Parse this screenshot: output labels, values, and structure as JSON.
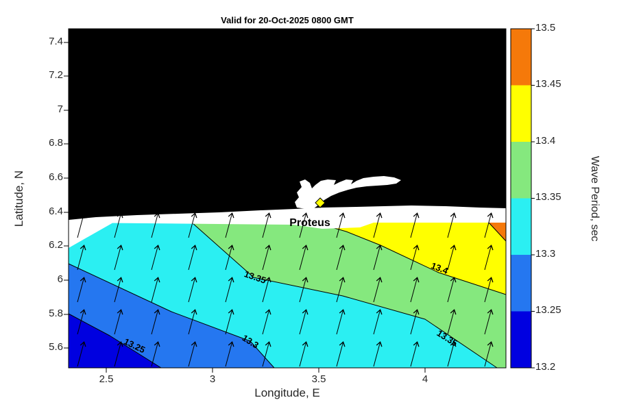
{
  "title": "Valid for 20-Oct-2025 0800 GMT",
  "axes": {
    "x": {
      "label": "Longitude, E",
      "ticks": [
        "2.5",
        "3",
        "3.5",
        "4"
      ]
    },
    "y": {
      "label": "Latitude, N",
      "ticks": [
        "7.4",
        "7.2",
        "7",
        "6.8",
        "6.6",
        "6.4",
        "6.2",
        "6",
        "5.8",
        "5.6"
      ]
    }
  },
  "colorbar": {
    "label": "Wave Period, sec",
    "ticks": [
      "13.5",
      "13.45",
      "13.4",
      "13.35",
      "13.3",
      "13.25",
      "13.2"
    ]
  },
  "map": {
    "station_label": "Proteus",
    "land_color": "#000000",
    "coast_buffer_color": "#FFFFFF",
    "station_marker_color": "#FFFF00"
  },
  "contour_labels": [
    {
      "value": "13.25"
    },
    {
      "value": "13.3"
    },
    {
      "value": "13.35"
    },
    {
      "value": "13.4"
    },
    {
      "value": "13.35"
    }
  ],
  "chart_data": {
    "type": "filled_contour_map_with_quiver",
    "title": "Valid for 20-Oct-2025 0800 GMT",
    "variable": "Wave Period, sec",
    "xlabel": "Longitude, E",
    "ylabel": "Latitude, N",
    "xlim": [
      2.32,
      4.38
    ],
    "ylim": [
      5.48,
      7.48
    ],
    "xticks": [
      2.5,
      3,
      3.5,
      4
    ],
    "yticks": [
      5.6,
      5.8,
      6,
      6.2,
      6.4,
      6.6,
      6.8,
      7,
      7.2,
      7.4
    ],
    "colorbar_levels": [
      13.2,
      13.25,
      13.3,
      13.35,
      13.4,
      13.45,
      13.5
    ],
    "band_colors": [
      "#0000E0",
      "#2577F0",
      "#2BEFF2",
      "#85E87E",
      "#FFFF00",
      "#F5790A"
    ],
    "labeled_contours": [
      13.25,
      13.3,
      13.35,
      13.4
    ],
    "station": {
      "name": "Proteus",
      "lon": 3.51,
      "lat": 6.46,
      "marker": "yellow-diamond"
    },
    "arrow_bearing_deg": 15,
    "field_summary": "Wave period rises from ~13.2 s in the SW corner through 13.25, 13.3, 13.35 bands to a 13.4-13.45 s (yellow) band and a small >13.45 s (orange) patch near the NE coast; quiver arrows show wave direction toward NNE; land north of ~6.4N is black with a white coastal strip and white Lagos lagoon"
  }
}
